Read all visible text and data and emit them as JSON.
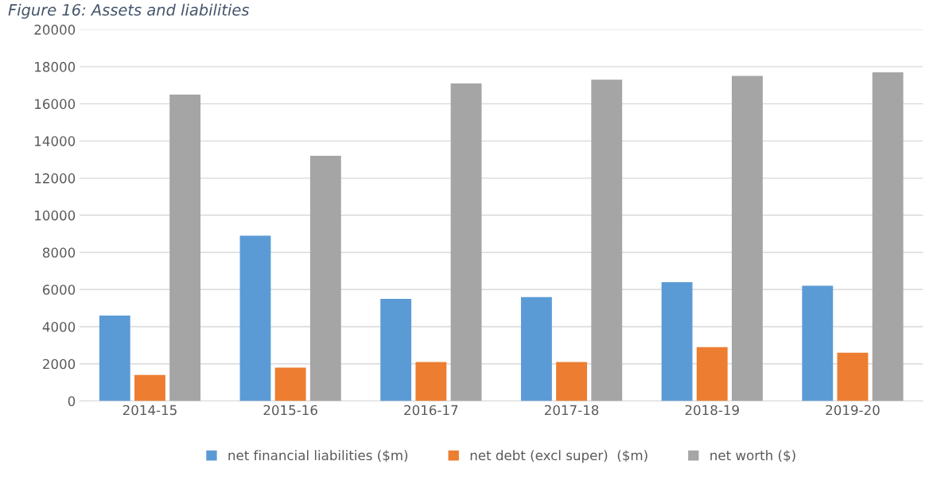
{
  "chart_data": {
    "type": "bar",
    "title": "Figure 16: Assets and liabilities",
    "categories": [
      "2014-15",
      "2015-16",
      "2016-17",
      "2017-18",
      "2018-19",
      "2019-20"
    ],
    "series": [
      {
        "name": "net financial liabilities ($m)",
        "color": "#5b9bd5",
        "values": [
          4600,
          8900,
          5500,
          5600,
          6400,
          6200
        ]
      },
      {
        "name": "net debt (excl super)  ($m)",
        "color": "#ed7d31",
        "values": [
          1400,
          1800,
          2100,
          2100,
          2900,
          2600
        ]
      },
      {
        "name": "net worth ($)",
        "color": "#a5a5a5",
        "values": [
          16500,
          13200,
          17100,
          17300,
          17500,
          17700
        ]
      }
    ],
    "ylim": [
      0,
      20000
    ],
    "yticks": [
      0,
      2000,
      4000,
      6000,
      8000,
      10000,
      12000,
      14000,
      16000,
      18000,
      20000
    ],
    "grid": "y",
    "legend": "bottom"
  }
}
